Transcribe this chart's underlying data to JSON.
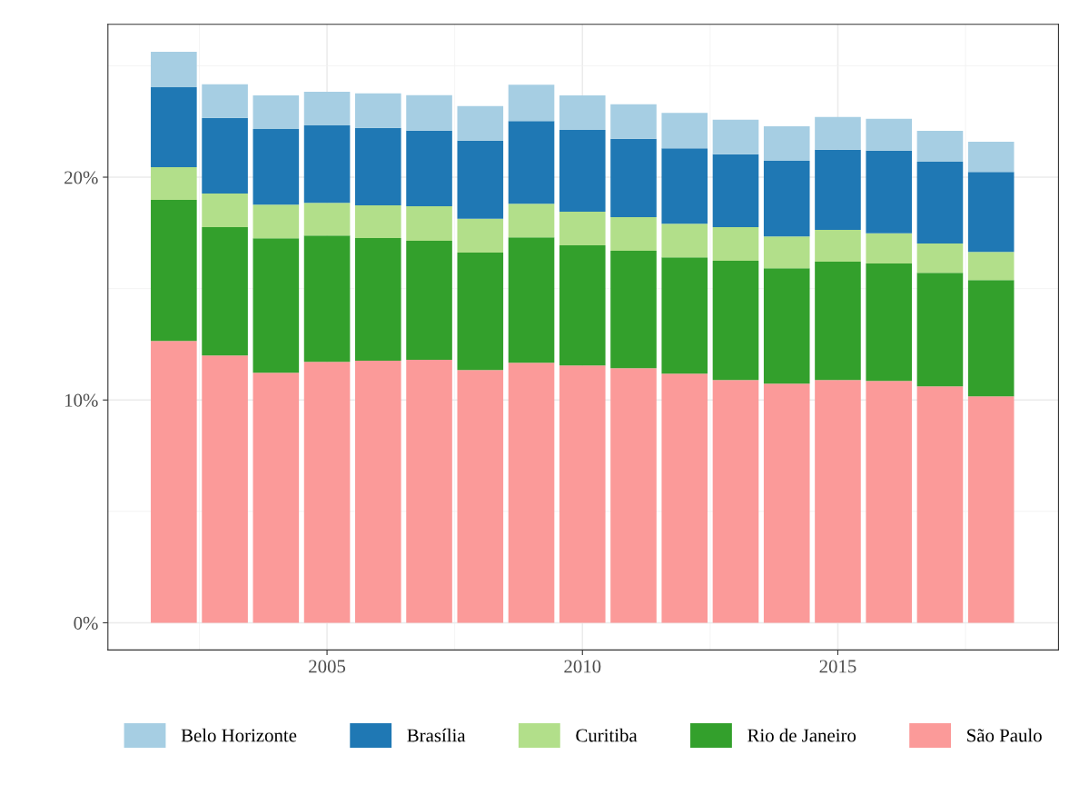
{
  "chart_data": {
    "type": "bar",
    "stacked": true,
    "x": [
      2002,
      2003,
      2004,
      2005,
      2006,
      2007,
      2008,
      2009,
      2010,
      2011,
      2012,
      2013,
      2014,
      2015,
      2016,
      2017,
      2018
    ],
    "series": [
      {
        "name": "São Paulo",
        "color": "#fb9a99",
        "values": [
          12.65,
          12.0,
          11.22,
          11.71,
          11.76,
          11.8,
          11.35,
          11.67,
          11.55,
          11.43,
          11.18,
          10.9,
          10.73,
          10.9,
          10.86,
          10.61,
          10.16
        ]
      },
      {
        "name": "Rio de Janeiro",
        "color": "#33a02c",
        "values": [
          6.33,
          5.76,
          6.04,
          5.67,
          5.51,
          5.35,
          5.27,
          5.63,
          5.39,
          5.27,
          5.22,
          5.35,
          5.18,
          5.31,
          5.27,
          5.1,
          5.22
        ]
      },
      {
        "name": "Curitiba",
        "color": "#b2df8a",
        "values": [
          1.47,
          1.51,
          1.51,
          1.47,
          1.47,
          1.55,
          1.51,
          1.51,
          1.51,
          1.51,
          1.51,
          1.51,
          1.43,
          1.43,
          1.35,
          1.31,
          1.27
        ]
      },
      {
        "name": "Brasília",
        "color": "#1f78b4",
        "values": [
          3.59,
          3.39,
          3.39,
          3.47,
          3.47,
          3.39,
          3.51,
          3.71,
          3.67,
          3.51,
          3.39,
          3.27,
          3.39,
          3.59,
          3.71,
          3.67,
          3.59
        ]
      },
      {
        "name": "Belo Horizonte",
        "color": "#a6cee3",
        "values": [
          1.59,
          1.51,
          1.51,
          1.51,
          1.55,
          1.59,
          1.55,
          1.63,
          1.55,
          1.55,
          1.59,
          1.55,
          1.55,
          1.47,
          1.43,
          1.39,
          1.35
        ]
      }
    ],
    "xlim": [
      2000.71,
      2019.32
    ],
    "xticks": [
      2005,
      2010,
      2015
    ],
    "ylim": [
      -1.22,
      26.86
    ],
    "yticks": [
      {
        "value": 0,
        "label": "0%"
      },
      {
        "value": 10,
        "label": "10%"
      },
      {
        "value": 20,
        "label": "20%"
      }
    ],
    "grid": true,
    "legend": "bottom"
  }
}
